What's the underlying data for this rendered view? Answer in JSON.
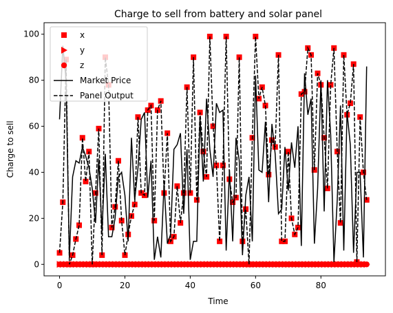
{
  "chart_data": {
    "type": "scatter",
    "title": "Charge to sell from battery and solar panel",
    "xlabel": "Time",
    "ylabel": "Charge to sell",
    "xlim": [
      -4.75,
      99.75
    ],
    "ylim": [
      -5,
      105
    ],
    "xticks": [
      0,
      20,
      40,
      60,
      80
    ],
    "yticks": [
      0,
      20,
      40,
      60,
      80,
      100
    ],
    "x_tick_labels": [
      "0",
      "20",
      "40",
      "60",
      "80"
    ],
    "y_tick_labels": [
      "0",
      "20",
      "40",
      "60",
      "80",
      "100"
    ],
    "grid": false,
    "legend_position": "upper-left",
    "x": [
      0,
      1,
      2,
      3,
      4,
      5,
      6,
      7,
      8,
      9,
      10,
      11,
      12,
      13,
      14,
      15,
      16,
      17,
      18,
      19,
      20,
      21,
      22,
      23,
      24,
      25,
      26,
      27,
      28,
      29,
      30,
      31,
      32,
      33,
      34,
      35,
      36,
      37,
      38,
      39,
      40,
      41,
      42,
      43,
      44,
      45,
      46,
      47,
      48,
      49,
      50,
      51,
      52,
      53,
      54,
      55,
      56,
      57,
      58,
      59,
      60,
      61,
      62,
      63,
      64,
      65,
      66,
      67,
      68,
      69,
      70,
      71,
      72,
      73,
      74,
      75,
      76,
      77,
      78,
      79,
      80,
      81,
      82,
      83,
      84,
      85,
      86,
      87,
      88,
      89,
      90,
      91,
      92,
      93,
      94
    ],
    "series": [
      {
        "name": "x",
        "marker": "square",
        "color": "#ff0000",
        "values": [
          5,
          27,
          89,
          0,
          4,
          11,
          17,
          55,
          36,
          49,
          0,
          31,
          59,
          4,
          90,
          78,
          16,
          25,
          45,
          19,
          4,
          13,
          21,
          26,
          64,
          31,
          30,
          67,
          69,
          19,
          67,
          71,
          31,
          57,
          10,
          12,
          34,
          18,
          31,
          77,
          31,
          90,
          28,
          66,
          49,
          38,
          99,
          60,
          43,
          10,
          43,
          99,
          37,
          27,
          29,
          90,
          10,
          24,
          0,
          55,
          99,
          72,
          77,
          69,
          39,
          54,
          51,
          91,
          10,
          10,
          49,
          20,
          13,
          16,
          74,
          75,
          94,
          91,
          41,
          83,
          78,
          55,
          33,
          78,
          94,
          49,
          18,
          91,
          65,
          70,
          87,
          1,
          64,
          40,
          28
        ]
      },
      {
        "name": "y",
        "marker": "triangle-right",
        "color": "#ff0000",
        "values": [
          0,
          0,
          0,
          0,
          0,
          0,
          0,
          0,
          0,
          0,
          0,
          0,
          0,
          0,
          0,
          0,
          0,
          0,
          0,
          0,
          0,
          0,
          0,
          0,
          0,
          0,
          0,
          0,
          0,
          0,
          0,
          0,
          0,
          0,
          0,
          0,
          0,
          0,
          0,
          0,
          0,
          0,
          0,
          0,
          0,
          0,
          0,
          0,
          0,
          0,
          0,
          0,
          0,
          0,
          0,
          0,
          0,
          0,
          0,
          0,
          0,
          0,
          0,
          0,
          0,
          0,
          0,
          0,
          0,
          0,
          0,
          0,
          0,
          0,
          0,
          0,
          0,
          0,
          0,
          0,
          0,
          0,
          0,
          0,
          0,
          0,
          0,
          0,
          0,
          0,
          0,
          0,
          0,
          0,
          0
        ]
      },
      {
        "name": "z",
        "marker": "circle",
        "color": "#ff0000",
        "values": [
          0,
          0,
          0,
          0,
          0,
          0,
          0,
          0,
          0,
          0,
          0,
          0,
          0,
          0,
          0,
          0,
          0,
          0,
          0,
          0,
          0,
          0,
          0,
          0,
          0,
          0,
          0,
          0,
          0,
          0,
          0,
          0,
          0,
          0,
          0,
          0,
          0,
          0,
          0,
          0,
          0,
          0,
          0,
          0,
          0,
          0,
          0,
          0,
          0,
          0,
          0,
          0,
          0,
          0,
          0,
          0,
          0,
          0,
          0,
          0,
          0,
          0,
          0,
          0,
          0,
          0,
          0,
          0,
          0,
          0,
          0,
          0,
          0,
          0,
          0,
          0,
          0,
          0,
          0,
          0,
          0,
          0,
          0,
          0,
          0,
          0,
          0,
          0,
          0,
          0,
          0,
          0,
          0,
          0,
          0
        ]
      },
      {
        "name": "Market Price",
        "line_style": "solid",
        "color": "#000000",
        "values": [
          63,
          95,
          80,
          3,
          38,
          45,
          44,
          51,
          47,
          42,
          33,
          18,
          46,
          14,
          48,
          12,
          12,
          20,
          38,
          40,
          30,
          10,
          55,
          28,
          42,
          63,
          66,
          29,
          45,
          2,
          12,
          3,
          35,
          9,
          13,
          50,
          52,
          57,
          22,
          50,
          2,
          10,
          10,
          64,
          36,
          72,
          50,
          38,
          70,
          66,
          67,
          6,
          41,
          10,
          55,
          45,
          4,
          30,
          38,
          10,
          82,
          41,
          40,
          62,
          27,
          61,
          48,
          22,
          24,
          51,
          32,
          53,
          42,
          60,
          8,
          83,
          65,
          72,
          9,
          33,
          80,
          23,
          80,
          56,
          1,
          28,
          69,
          6,
          66,
          52,
          5,
          40,
          40,
          3,
          86
        ]
      },
      {
        "name": "Panel Output",
        "line_style": "dashed",
        "color": "#000000",
        "values": [
          5,
          27,
          89,
          0,
          4,
          11,
          17,
          55,
          36,
          49,
          0,
          31,
          59,
          4,
          90,
          78,
          16,
          25,
          45,
          19,
          4,
          13,
          21,
          26,
          64,
          31,
          30,
          67,
          69,
          19,
          67,
          71,
          31,
          57,
          10,
          12,
          34,
          18,
          31,
          77,
          31,
          90,
          28,
          66,
          49,
          38,
          99,
          60,
          43,
          10,
          43,
          99,
          37,
          27,
          29,
          90,
          10,
          24,
          0,
          55,
          99,
          72,
          77,
          69,
          39,
          54,
          51,
          91,
          10,
          10,
          49,
          20,
          13,
          16,
          74,
          75,
          94,
          91,
          41,
          83,
          78,
          55,
          33,
          78,
          94,
          49,
          18,
          91,
          65,
          70,
          87,
          1,
          64,
          40,
          28
        ]
      }
    ]
  }
}
